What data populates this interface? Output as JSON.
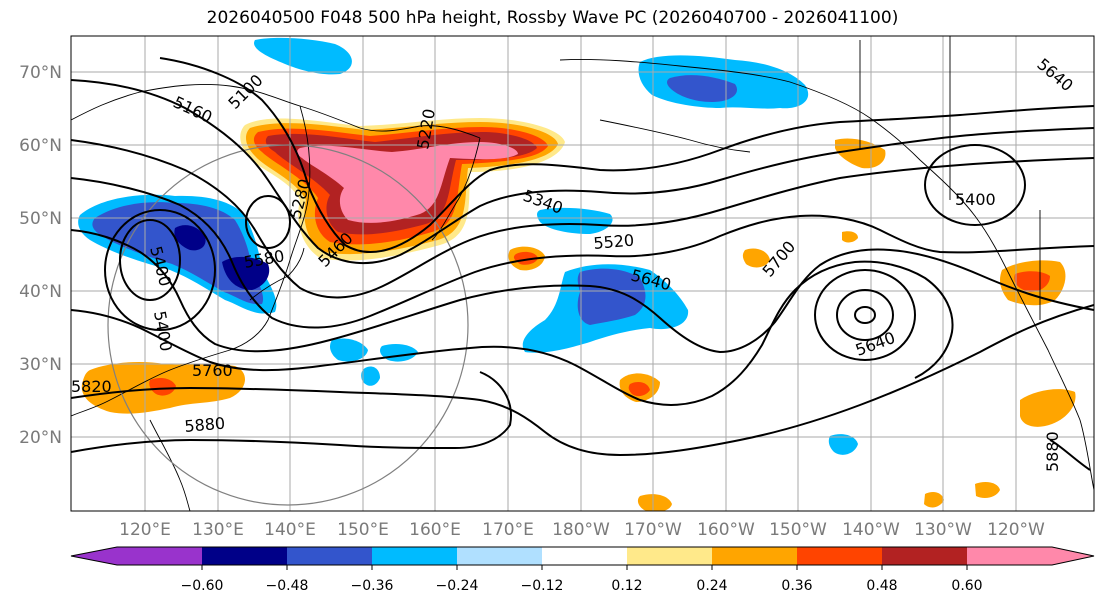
{
  "title": "2026040500 F048 500 hPa height, Rossby Wave PC (2026040700 - 2026041100)",
  "lat_labels": [
    "70°N",
    "60°N",
    "50°N",
    "40°N",
    "30°N",
    "20°N"
  ],
  "lon_labels": [
    "120°E",
    "130°E",
    "140°E",
    "150°E",
    "160°E",
    "170°E",
    "180°W",
    "170°W",
    "160°W",
    "150°W",
    "140°W",
    "130°W",
    "120°W"
  ],
  "contour_labels": [
    "5100",
    "5160",
    "5220",
    "5280",
    "5340",
    "5400",
    "5460",
    "5520",
    "5580",
    "5640",
    "5640",
    "5700",
    "5760",
    "5820",
    "5880",
    "5880",
    "5400",
    "5640",
    "5400"
  ],
  "colorbar": {
    "ticks": [
      "−0.60",
      "−0.48",
      "−0.36",
      "−0.24",
      "−0.12",
      "0.12",
      "0.24",
      "0.36",
      "0.48",
      "0.60"
    ],
    "colors": [
      "#9933cc",
      "#000088",
      "#3355cc",
      "#00bbff",
      "#b0e0ff",
      "#ffffff",
      "#ffe98a",
      "#ffa500",
      "#ff4400",
      "#b22222",
      "#ff88aa"
    ]
  },
  "map_colors": {
    "land": "#ffffff",
    "grid": "#aaaaaa",
    "contour": "#000000",
    "circle": "#808080"
  }
}
